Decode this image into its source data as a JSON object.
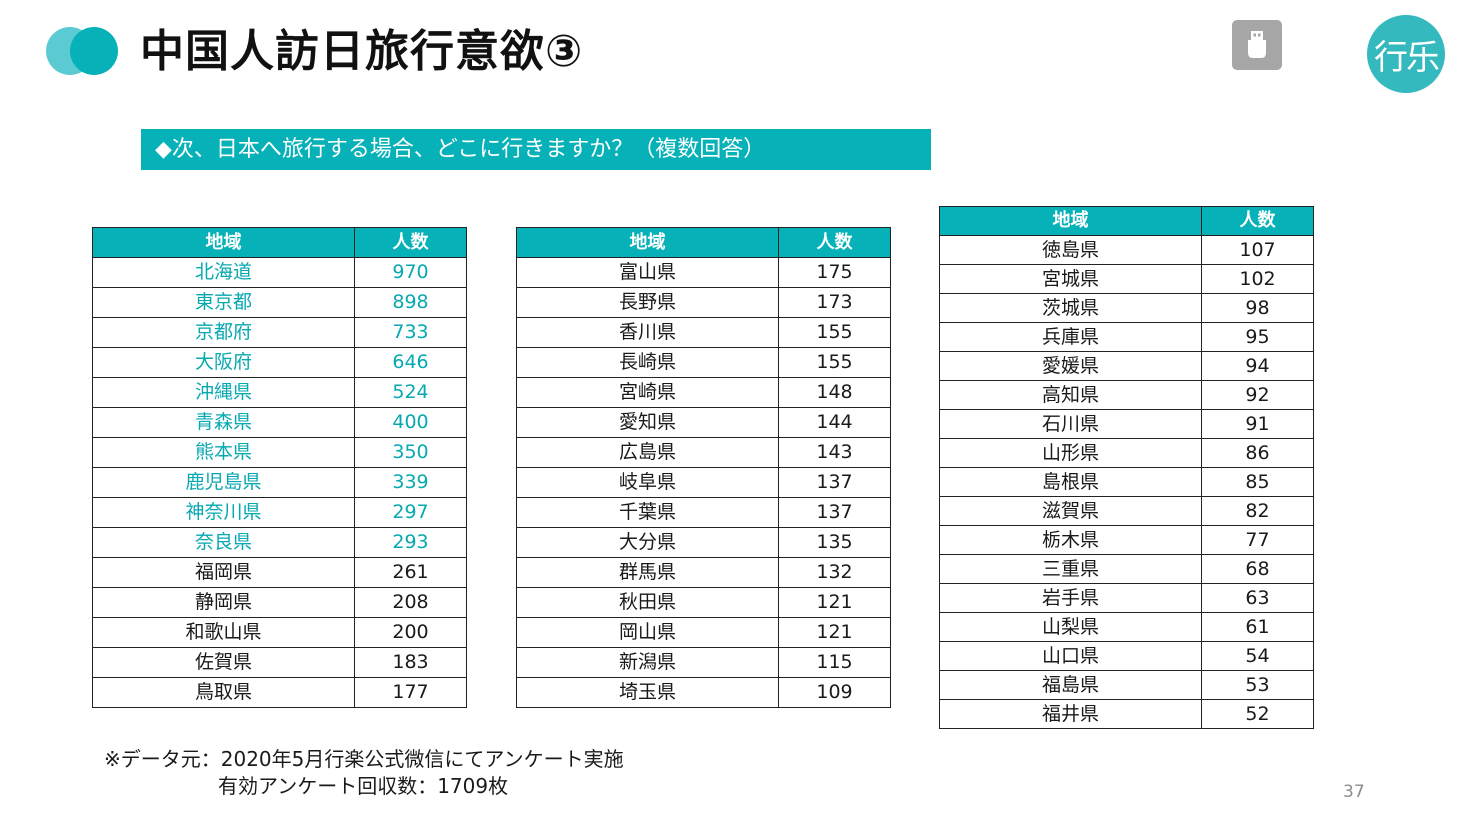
{
  "title": "中国人訪日旅行意欲③",
  "brand": "行乐",
  "question": "◆次、日本へ旅行する場合、どこに行きますか？（複数回答）",
  "colors": {
    "accent": "#07b1b8",
    "accent_light": "#5bcad2",
    "highlight_text": "#07a9b0"
  },
  "icons": {
    "usb": "usb-drive-icon"
  },
  "headers": {
    "region": "地域",
    "count": "人数"
  },
  "tables": [
    {
      "rows": [
        {
          "region": "北海道",
          "count": "970",
          "highlight": true
        },
        {
          "region": "東京都",
          "count": "898",
          "highlight": true
        },
        {
          "region": "京都府",
          "count": "733",
          "highlight": true
        },
        {
          "region": "大阪府",
          "count": "646",
          "highlight": true
        },
        {
          "region": "沖縄県",
          "count": "524",
          "highlight": true
        },
        {
          "region": "青森県",
          "count": "400",
          "highlight": true
        },
        {
          "region": "熊本県",
          "count": "350",
          "highlight": true
        },
        {
          "region": "鹿児島県",
          "count": "339",
          "highlight": true
        },
        {
          "region": "神奈川県",
          "count": "297",
          "highlight": true
        },
        {
          "region": "奈良県",
          "count": "293",
          "highlight": true
        },
        {
          "region": "福岡県",
          "count": "261",
          "highlight": false
        },
        {
          "region": "静岡県",
          "count": "208",
          "highlight": false
        },
        {
          "region": "和歌山県",
          "count": "200",
          "highlight": false
        },
        {
          "region": "佐賀県",
          "count": "183",
          "highlight": false
        },
        {
          "region": "鳥取県",
          "count": "177",
          "highlight": false
        }
      ]
    },
    {
      "rows": [
        {
          "region": "富山県",
          "count": "175"
        },
        {
          "region": "長野県",
          "count": "173"
        },
        {
          "region": "香川県",
          "count": "155"
        },
        {
          "region": "長崎県",
          "count": "155"
        },
        {
          "region": "宮崎県",
          "count": "148"
        },
        {
          "region": "愛知県",
          "count": "144"
        },
        {
          "region": "広島県",
          "count": "143"
        },
        {
          "region": "岐阜県",
          "count": "137"
        },
        {
          "region": "千葉県",
          "count": "137"
        },
        {
          "region": "大分県",
          "count": "135"
        },
        {
          "region": "群馬県",
          "count": "132"
        },
        {
          "region": "秋田県",
          "count": "121"
        },
        {
          "region": "岡山県",
          "count": "121"
        },
        {
          "region": "新潟県",
          "count": "115"
        },
        {
          "region": "埼玉県",
          "count": "109"
        }
      ]
    },
    {
      "rows": [
        {
          "region": "徳島県",
          "count": "107"
        },
        {
          "region": "宮城県",
          "count": "102"
        },
        {
          "region": "茨城県",
          "count": "98"
        },
        {
          "region": "兵庫県",
          "count": "95"
        },
        {
          "region": "愛媛県",
          "count": "94"
        },
        {
          "region": "高知県",
          "count": "92"
        },
        {
          "region": "石川県",
          "count": "91"
        },
        {
          "region": "山形県",
          "count": "86"
        },
        {
          "region": "島根県",
          "count": "85"
        },
        {
          "region": "滋賀県",
          "count": "82"
        },
        {
          "region": "栃木県",
          "count": "77"
        },
        {
          "region": "三重県",
          "count": "68"
        },
        {
          "region": "岩手県",
          "count": "63"
        },
        {
          "region": "山梨県",
          "count": "61"
        },
        {
          "region": "山口県",
          "count": "54"
        },
        {
          "region": "福島県",
          "count": "53"
        },
        {
          "region": "福井県",
          "count": "52"
        }
      ]
    }
  ],
  "source_note": {
    "line1": "※データ元：2020年5月行楽公式微信にてアンケート実施",
    "line2": "有効アンケート回収数：1709枚"
  },
  "page_number": "37"
}
